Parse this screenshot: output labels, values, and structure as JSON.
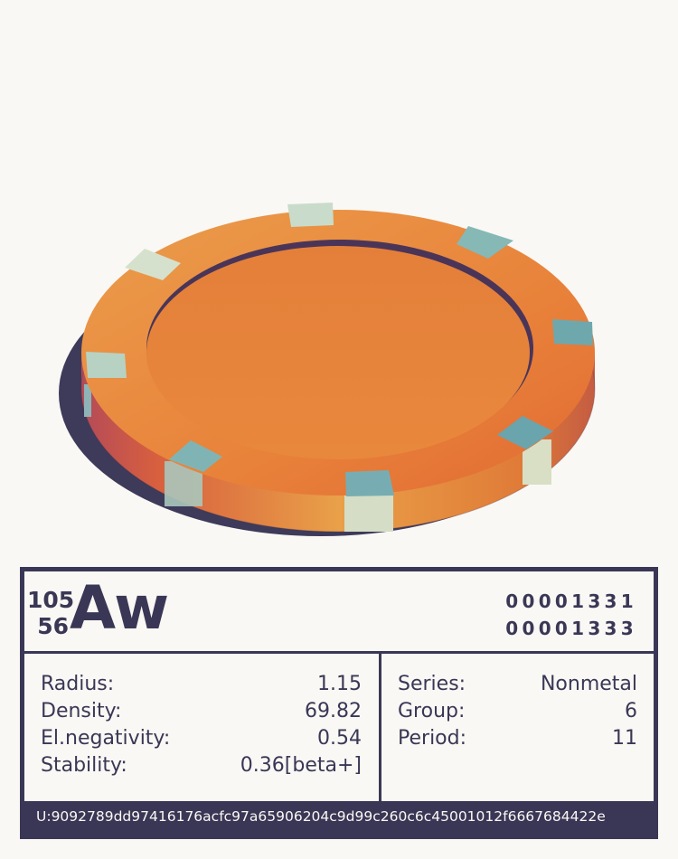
{
  "element": {
    "mass_number": "105",
    "atomic_number": "56",
    "symbol": "Aw",
    "code_top": "00001331",
    "code_bottom": "00001333"
  },
  "properties_left": [
    {
      "label": "Radius:",
      "value": "1.15"
    },
    {
      "label": "Density:",
      "value": "69.82"
    },
    {
      "label": "El.negativity:",
      "value": "0.54"
    },
    {
      "label": "Stability:",
      "value": "0.36[beta+]"
    }
  ],
  "properties_right": [
    {
      "label": "Series:",
      "value": "Nonmetal"
    },
    {
      "label": "Group:",
      "value": "6"
    },
    {
      "label": "Period:",
      "value": "11"
    }
  ],
  "footer": {
    "uid": "U:9092789dd97416176acfc97a65906204c9d99c260c6c45001012f6667684422e"
  },
  "colors": {
    "ink": "#3a3756",
    "background": "#faf8f4",
    "chip_orange": "#e8823a",
    "chip_shadow": "#3d3a5a",
    "chip_inlay": "#7fb0b0"
  },
  "icons": {
    "chip": "poker-chip-illustration"
  }
}
